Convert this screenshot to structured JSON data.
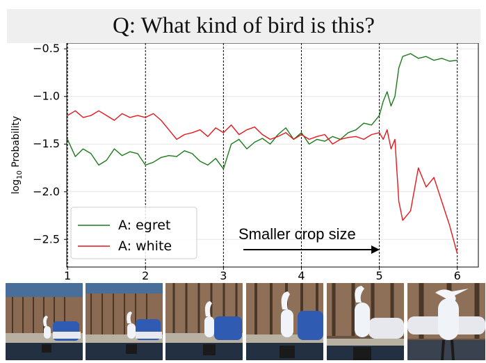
{
  "question": "Q: What kind of bird is this?",
  "chart_data": {
    "type": "line",
    "xlabel": "",
    "ylabel": "log10 Probability",
    "xlim": [
      0.99,
      6.27
    ],
    "ylim": [
      -2.79,
      -0.44
    ],
    "xticks": [
      1,
      2,
      3,
      4,
      5,
      6
    ],
    "yticks": [
      -0.5,
      -1.0,
      -1.5,
      -2.0,
      -2.5
    ],
    "xtick_labels": [
      "1",
      "2",
      "3",
      "4",
      "5",
      "6"
    ],
    "ytick_labels": [
      "−0.5",
      "−1.0",
      "−1.5",
      "−2.0",
      "−2.5"
    ],
    "vlines_at": [
      1,
      2,
      3,
      4,
      5,
      6
    ],
    "grid": true,
    "legend_position": "lower-left",
    "annotation": "Smaller crop size",
    "series": [
      {
        "name": "A: egret",
        "color": "#1a7a1a",
        "x": [
          1.0,
          1.1,
          1.2,
          1.3,
          1.4,
          1.5,
          1.6,
          1.7,
          1.8,
          1.9,
          2.0,
          2.1,
          2.2,
          2.3,
          2.4,
          2.5,
          2.6,
          2.7,
          2.8,
          2.9,
          3.0,
          3.1,
          3.2,
          3.3,
          3.4,
          3.5,
          3.6,
          3.7,
          3.8,
          3.9,
          4.0,
          4.1,
          4.2,
          4.3,
          4.4,
          4.5,
          4.6,
          4.7,
          4.8,
          4.9,
          5.0,
          5.05,
          5.1,
          5.15,
          5.2,
          5.25,
          5.3,
          5.4,
          5.5,
          5.6,
          5.7,
          5.8,
          5.9,
          6.0
        ],
        "values": [
          -1.45,
          -1.63,
          -1.55,
          -1.6,
          -1.72,
          -1.67,
          -1.55,
          -1.62,
          -1.58,
          -1.6,
          -1.72,
          -1.69,
          -1.64,
          -1.62,
          -1.63,
          -1.57,
          -1.6,
          -1.68,
          -1.72,
          -1.65,
          -1.76,
          -1.5,
          -1.45,
          -1.55,
          -1.48,
          -1.44,
          -1.5,
          -1.4,
          -1.33,
          -1.45,
          -1.38,
          -1.5,
          -1.45,
          -1.47,
          -1.42,
          -1.45,
          -1.38,
          -1.35,
          -1.28,
          -1.3,
          -1.2,
          -1.05,
          -0.95,
          -1.1,
          -1.0,
          -0.7,
          -0.58,
          -0.55,
          -0.6,
          -0.58,
          -0.62,
          -0.6,
          -0.63,
          -0.62
        ]
      },
      {
        "name": "A: white",
        "color": "#e8151b",
        "x": [
          1.0,
          1.1,
          1.2,
          1.3,
          1.4,
          1.5,
          1.6,
          1.7,
          1.8,
          1.9,
          2.0,
          2.1,
          2.2,
          2.3,
          2.4,
          2.5,
          2.6,
          2.7,
          2.8,
          2.9,
          3.0,
          3.1,
          3.2,
          3.3,
          3.4,
          3.5,
          3.6,
          3.7,
          3.8,
          3.9,
          4.0,
          4.1,
          4.2,
          4.3,
          4.4,
          4.5,
          4.6,
          4.7,
          4.8,
          4.9,
          5.0,
          5.05,
          5.1,
          5.15,
          5.2,
          5.25,
          5.3,
          5.4,
          5.5,
          5.6,
          5.7,
          5.8,
          5.9,
          6.0
        ],
        "values": [
          -1.2,
          -1.15,
          -1.22,
          -1.2,
          -1.15,
          -1.2,
          -1.25,
          -1.18,
          -1.22,
          -1.2,
          -1.22,
          -1.18,
          -1.25,
          -1.35,
          -1.45,
          -1.4,
          -1.38,
          -1.35,
          -1.42,
          -1.33,
          -1.38,
          -1.3,
          -1.4,
          -1.35,
          -1.32,
          -1.4,
          -1.45,
          -1.42,
          -1.38,
          -1.45,
          -1.4,
          -1.45,
          -1.42,
          -1.4,
          -1.5,
          -1.45,
          -1.43,
          -1.42,
          -1.45,
          -1.4,
          -1.38,
          -1.45,
          -1.35,
          -1.55,
          -1.45,
          -2.1,
          -2.3,
          -2.2,
          -1.75,
          -1.95,
          -1.85,
          -2.1,
          -2.35,
          -2.65
        ]
      }
    ]
  }
}
